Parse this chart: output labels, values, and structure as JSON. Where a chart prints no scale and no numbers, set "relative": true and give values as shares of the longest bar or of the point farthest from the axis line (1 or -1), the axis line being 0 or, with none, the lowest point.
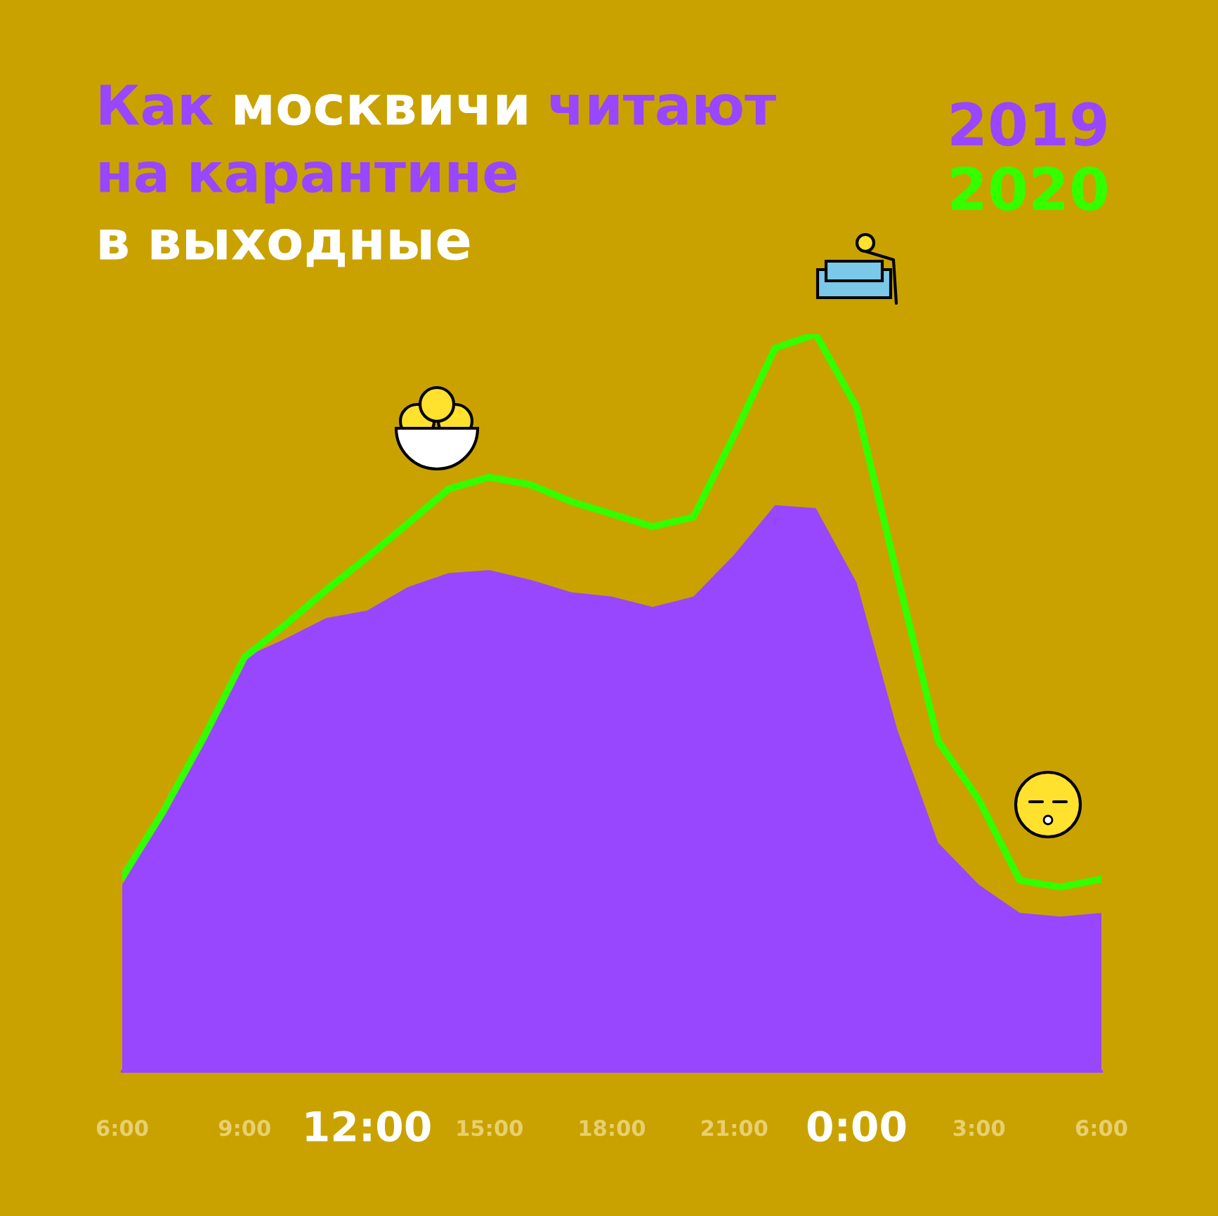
{
  "chart_data": {
    "type": "area",
    "title": "Как москвичи читают на карантине в выходные",
    "relative": true,
    "categories": [
      "6:00",
      null,
      null,
      "9:00",
      null,
      null,
      "12:00",
      null,
      null,
      "15:00",
      null,
      null,
      "18:00",
      null,
      null,
      "21:00",
      null,
      null,
      "0:00",
      null,
      null,
      "3:00",
      null,
      null,
      "6:00"
    ],
    "tick_labels": "x",
    "grid": false,
    "legend": "top right",
    "series": [
      {
        "name": "2019",
        "color": "#9946ff",
        "values": [
          0.253,
          0.349,
          0.453,
          0.562,
          0.587,
          0.615,
          0.625,
          0.657,
          0.676,
          0.68,
          0.667,
          0.65,
          0.644,
          0.63,
          0.644,
          0.701,
          0.768,
          0.764,
          0.663,
          0.463,
          0.31,
          0.253,
          0.215,
          0.21,
          0.215
        ]
      },
      {
        "name": "2020",
        "type": "line",
        "color": "#33ff00",
        "values": [
          0.263,
          0.352,
          0.453,
          0.562,
          0.606,
          0.653,
          0.697,
          0.743,
          0.79,
          0.806,
          0.796,
          0.773,
          0.756,
          0.739,
          0.752,
          0.863,
          0.981,
          1.0,
          0.901,
          0.672,
          0.448,
          0.368,
          0.259,
          0.25,
          0.261
        ]
      }
    ]
  }
}
